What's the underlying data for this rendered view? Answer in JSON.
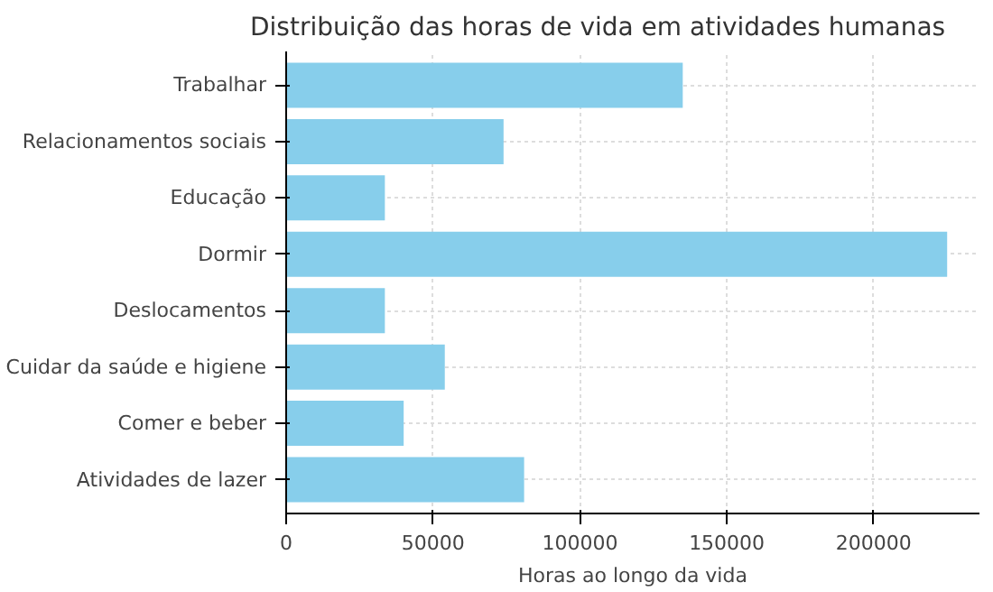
{
  "chart_data": {
    "type": "bar",
    "orientation": "horizontal",
    "title": "Distribuição das horas de vida em atividades humanas",
    "xlabel": "Horas ao longo da vida",
    "categories": [
      "Trabalhar",
      "Relacionamentos sociais",
      "Educação",
      "Dormir",
      "Deslocamentos",
      "Cuidar da saúde e higiene",
      "Comer e beber",
      "Atividades de lazer"
    ],
    "values": [
      135000,
      74000,
      33600,
      225000,
      33600,
      54000,
      40000,
      81000
    ],
    "color": "#87ceeb",
    "xlim": [
      0,
      236000
    ],
    "xticks": [
      0,
      50000,
      100000,
      150000,
      200000
    ],
    "grid": true
  }
}
